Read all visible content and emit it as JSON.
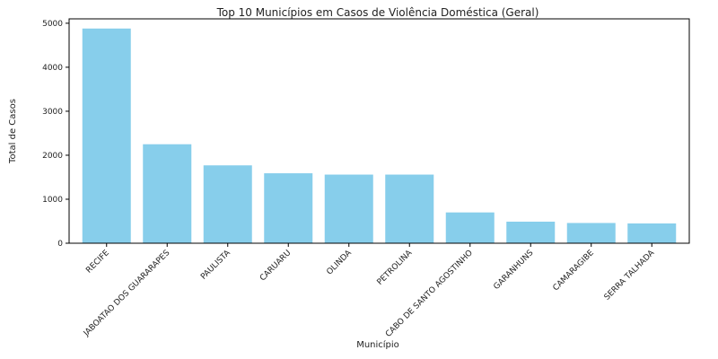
{
  "chart_data": {
    "type": "bar",
    "title": "Top 10 Municípios em Casos de Violência Doméstica (Geral)",
    "xlabel": "Município",
    "ylabel": "Total de Casos",
    "ylim": [
      0,
      5100
    ],
    "yticks": [
      0,
      1000,
      2000,
      3000,
      4000,
      5000
    ],
    "grid": false,
    "categories": [
      "RECIFE",
      "JABOATAO DOS GUARARAPES",
      "PAULISTA",
      "CARUARU",
      "OLINDA",
      "PETROLINA",
      "CABO DE SANTO AGOSTINHO",
      "GARANHUNS",
      "CAMARAGIBE",
      "SERRA TALHADA"
    ],
    "values": [
      4880,
      2250,
      1770,
      1590,
      1560,
      1560,
      700,
      490,
      460,
      450
    ],
    "bar_color": "#87CEEB"
  }
}
